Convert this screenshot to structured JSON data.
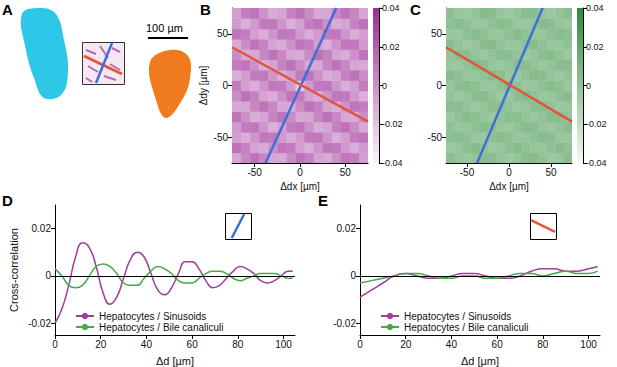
{
  "panel_a": {
    "panel": "A",
    "scale_bar": "100 µm"
  },
  "chart_data": [
    {
      "type": "heatmap",
      "panel": "B",
      "x_label": "Δdx [µm]",
      "y_label": "Δdy [µm]",
      "xlim": [
        -75,
        75
      ],
      "ylim": [
        -75,
        75
      ],
      "xticks": [
        -50,
        0,
        50
      ],
      "yticks": [
        -50,
        0,
        50
      ],
      "grid": false,
      "x": [
        -70,
        -60,
        -50,
        -40,
        -30,
        -20,
        -10,
        0,
        10,
        20,
        30,
        40,
        50,
        60,
        70
      ],
      "y": [
        -70,
        -60,
        -50,
        -40,
        -30,
        -20,
        -10,
        0,
        10,
        20,
        30,
        40,
        50,
        60,
        70
      ],
      "cells": [
        [
          -0.009,
          0.004,
          0.012,
          0.004,
          -0.009,
          -0.01,
          0.002,
          0.012,
          0.006,
          -0.008,
          -0.011,
          0,
          0.011,
          0.008,
          -0.006
        ],
        [
          0.012,
          0.006,
          -0.008,
          -0.011,
          0,
          0.011,
          0.008,
          -0.006,
          -0.012,
          -0.002,
          0.01,
          0.009,
          -0.004,
          -0.012,
          -0.004
        ],
        [
          -0.006,
          -0.012,
          -0.002,
          0.01,
          0.009,
          -0.004,
          -0.012,
          -0.004,
          0.009,
          0.01,
          -0.002,
          -0.012,
          -0.006,
          0.008,
          0.011
        ],
        [
          -0.004,
          0.009,
          0.01,
          -0.002,
          -0.012,
          -0.006,
          0.008,
          0.011,
          0,
          -0.011,
          -0.008,
          0.006,
          0.012,
          0.002,
          -0.01
        ],
        [
          0.011,
          0,
          -0.011,
          -0.008,
          0.006,
          0.012,
          0.002,
          -0.01,
          -0.009,
          0.004,
          0.012,
          0.004,
          -0.009,
          -0.01,
          0.002
        ],
        [
          -0.01,
          -0.009,
          0.004,
          0.012,
          0.004,
          -0.009,
          -0.01,
          0.002,
          0.012,
          0.006,
          -0.008,
          -0.011,
          0,
          0.011,
          0.008
        ],
        [
          0.002,
          0.012,
          0.006,
          -0.008,
          -0.011,
          0,
          0.011,
          0.008,
          -0.006,
          -0.012,
          -0.002,
          0.01,
          0.009,
          -0.004,
          -0.012
        ],
        [
          0.008,
          -0.006,
          -0.012,
          -0.002,
          0.01,
          0.009,
          -0.004,
          -0.02,
          -0.004,
          0.009,
          0.01,
          -0.002,
          -0.012,
          -0.006,
          0.008
        ],
        [
          -0.012,
          -0.004,
          0.009,
          0.01,
          -0.002,
          -0.012,
          -0.006,
          0.008,
          0.011,
          0,
          -0.011,
          -0.008,
          0.006,
          0.012,
          0.002
        ],
        [
          0.008,
          0.011,
          0,
          -0.011,
          -0.008,
          0.006,
          0.012,
          0.002,
          -0.01,
          -0.009,
          0.004,
          0.012,
          0.004,
          -0.009,
          -0.01
        ],
        [
          0.002,
          -0.01,
          -0.009,
          0.004,
          0.012,
          0.004,
          -0.009,
          -0.01,
          0.002,
          0.012,
          0.006,
          -0.008,
          -0.011,
          0,
          0.011
        ],
        [
          -0.01,
          0.002,
          0.012,
          0.006,
          -0.008,
          -0.011,
          0,
          0.011,
          0.008,
          -0.006,
          -0.012,
          -0.002,
          0.01,
          0.009,
          -0.004
        ],
        [
          0.011,
          0.008,
          -0.006,
          -0.012,
          -0.002,
          0.01,
          0.009,
          -0.004,
          -0.012,
          -0.004,
          0.009,
          0.01,
          -0.002,
          -0.012,
          -0.006
        ],
        [
          -0.004,
          -0.012,
          -0.004,
          0.009,
          0.01,
          -0.002,
          -0.012,
          -0.006,
          0.008,
          0.011,
          0,
          -0.011,
          -0.008,
          0.006,
          0.012
        ],
        [
          -0.006,
          0.008,
          0.011,
          0,
          -0.011,
          -0.008,
          0.006,
          0.012,
          0.002,
          -0.01,
          -0.009,
          0.004,
          0.012,
          0.004,
          -0.009
        ]
      ],
      "colorbar": {
        "range": [
          -0.04,
          0.04
        ],
        "ticks": [
          -0.04,
          -0.02,
          0,
          0.02,
          0.04
        ],
        "colors": [
          "#fbf4fb",
          "#9d2d96"
        ]
      },
      "lines": [
        {
          "color": "#3d6fd8",
          "x": [
            -38,
            40
          ],
          "y": [
            -75,
            75
          ]
        },
        {
          "color": "#e2553b",
          "x": [
            -75,
            75
          ],
          "y": [
            37,
            -35
          ]
        }
      ]
    },
    {
      "type": "heatmap",
      "panel": "C",
      "x_label": "Δdx [µm]",
      "xlim": [
        -75,
        75
      ],
      "ylim": [
        -75,
        75
      ],
      "xticks": [
        -50,
        0,
        50
      ],
      "yticks": [
        -50,
        0,
        50
      ],
      "grid": false,
      "x": [
        -70,
        -60,
        -50,
        -40,
        -30,
        -20,
        -10,
        0,
        10,
        20,
        30,
        40,
        50,
        60,
        70
      ],
      "y": [
        -70,
        -60,
        -50,
        -40,
        -30,
        -20,
        -10,
        0,
        10,
        20,
        30,
        40,
        50,
        60,
        70
      ],
      "cells": [
        [
          0.003,
          -0.001,
          -0.004,
          -0.001,
          0.003,
          0.003,
          -0.001,
          -0.004,
          -0.002,
          0.003,
          0.004,
          0,
          -0.004,
          -0.003,
          0.002
        ],
        [
          -0.004,
          -0.002,
          0.003,
          0.004,
          0,
          -0.004,
          -0.003,
          0.002,
          0.004,
          0.001,
          -0.003,
          -0.003,
          0.001,
          0.004,
          0.001
        ],
        [
          0.002,
          0.004,
          0.001,
          -0.003,
          -0.003,
          0.001,
          0.004,
          0.001,
          -0.003,
          -0.003,
          0.001,
          0.004,
          0.002,
          -0.003,
          -0.004
        ],
        [
          0.001,
          -0.003,
          -0.003,
          0.001,
          0.004,
          0.002,
          -0.003,
          -0.004,
          0,
          0.004,
          0.003,
          -0.002,
          -0.004,
          -0.001,
          0.003
        ],
        [
          -0.004,
          0,
          0.004,
          0.003,
          -0.002,
          -0.004,
          -0.001,
          0.003,
          0.003,
          -0.001,
          -0.004,
          -0.001,
          0.003,
          0.003,
          -0.001
        ],
        [
          0.003,
          0.003,
          -0.001,
          -0.004,
          -0.001,
          0.003,
          0.003,
          -0.001,
          -0.004,
          -0.002,
          0.003,
          0.004,
          0,
          -0.004,
          -0.003
        ],
        [
          -0.001,
          -0.004,
          -0.002,
          0.003,
          0.004,
          0,
          -0.004,
          -0.003,
          0.002,
          0.004,
          0.001,
          -0.003,
          -0.003,
          0.001,
          0.004
        ],
        [
          -0.003,
          0.002,
          0.004,
          0.001,
          -0.003,
          -0.003,
          0.001,
          0.004,
          0.001,
          -0.003,
          -0.003,
          0.001,
          0.004,
          0.002,
          -0.003
        ],
        [
          0.004,
          0.001,
          -0.003,
          -0.003,
          0.001,
          0.004,
          0.002,
          -0.003,
          -0.004,
          0,
          0.004,
          0.003,
          -0.002,
          -0.004,
          -0.001
        ],
        [
          -0.003,
          -0.004,
          0,
          0.004,
          0.003,
          -0.002,
          -0.004,
          -0.001,
          0.003,
          0.003,
          -0.001,
          -0.004,
          -0.001,
          0.003,
          0.003
        ],
        [
          -0.001,
          0.003,
          0.003,
          -0.001,
          -0.004,
          -0.001,
          0.003,
          0.003,
          -0.001,
          -0.004,
          -0.002,
          0.003,
          0.004,
          0,
          -0.004
        ],
        [
          0.003,
          -0.001,
          -0.004,
          -0.002,
          0.003,
          0.004,
          0,
          -0.004,
          -0.003,
          0.002,
          0.004,
          0.001,
          -0.003,
          -0.003,
          0.001
        ],
        [
          -0.004,
          -0.003,
          0.002,
          0.004,
          0.001,
          -0.003,
          -0.003,
          0.001,
          0.004,
          0.001,
          -0.003,
          -0.003,
          0.001,
          0.004,
          0.002
        ],
        [
          0.001,
          0.004,
          0.001,
          -0.003,
          -0.003,
          0.001,
          0.004,
          0.002,
          -0.003,
          -0.004,
          0,
          0.004,
          0.003,
          -0.002,
          -0.004
        ],
        [
          0.002,
          -0.003,
          -0.004,
          0,
          0.004,
          0.003,
          -0.002,
          -0.004,
          -0.001,
          0.003,
          0.003,
          -0.001,
          -0.004,
          -0.001,
          0.003
        ]
      ],
      "colorbar": {
        "range": [
          -0.04,
          0.04
        ],
        "ticks": [
          -0.04,
          -0.02,
          0,
          0.02,
          0.04
        ],
        "colors": [
          "#f4faf3",
          "#2e8b3a"
        ]
      },
      "lines": [
        {
          "color": "#3d6fd8",
          "x": [
            -38,
            40
          ],
          "y": [
            -75,
            75
          ]
        },
        {
          "color": "#e2553b",
          "x": [
            -75,
            75
          ],
          "y": [
            37,
            -35
          ]
        }
      ]
    },
    {
      "type": "line",
      "panel": "D",
      "x_label": "Δd [µm]",
      "y_label": "Cross-correlation",
      "xlim": [
        0,
        105
      ],
      "ylim": [
        -0.025,
        0.03
      ],
      "xticks": [
        0,
        20,
        40,
        60,
        80,
        100
      ],
      "yticks": [
        -0.02,
        0,
        0.02
      ],
      "grid": false,
      "legend": "lower left",
      "marker": "none",
      "line_style": "solid",
      "hline": 0,
      "direction_color": "#3d6fd8",
      "x": [
        0,
        3,
        6,
        9,
        12,
        15,
        18,
        21,
        24,
        27,
        30,
        33,
        36,
        39,
        42,
        45,
        48,
        51,
        54,
        57,
        60,
        63,
        66,
        69,
        72,
        75,
        78,
        81,
        84,
        87,
        90,
        93,
        96,
        99,
        102,
        104
      ],
      "series": [
        {
          "name": "Hepatocytes / Sinusoids",
          "color": "#a23b9c",
          "values": [
            -0.02,
            -0.014,
            -0.004,
            0.008,
            0.014,
            0.012,
            0.004,
            -0.007,
            -0.012,
            -0.009,
            -0.001,
            0.007,
            0.01,
            0.008,
            0.001,
            -0.006,
            -0.008,
            -0.005,
            0.001,
            0.006,
            0.006,
            0.003,
            -0.002,
            -0.005,
            -0.004,
            -0.001,
            0.002,
            0.004,
            0.003,
            0.001,
            -0.002,
            -0.003,
            -0.002,
            0,
            0.002,
            0.002
          ]
        },
        {
          "name": "Hepatocytes / Bile canaliculi",
          "color": "#45a84b",
          "values": [
            0.003,
            0,
            -0.004,
            -0.005,
            -0.004,
            0,
            0.004,
            0.005,
            0.004,
            0.001,
            -0.003,
            -0.004,
            -0.004,
            -0.001,
            0.002,
            0.004,
            0.003,
            0.001,
            -0.002,
            -0.003,
            -0.003,
            -0.001,
            0.001,
            0.002,
            0.002,
            0.001,
            -0.001,
            -0.002,
            -0.001,
            0,
            0.001,
            0.001,
            0.001,
            0,
            -0.001,
            -0.001
          ]
        }
      ]
    },
    {
      "type": "line",
      "panel": "E",
      "x_label": "Δd [µm]",
      "xlim": [
        0,
        105
      ],
      "ylim": [
        -0.025,
        0.03
      ],
      "xticks": [
        0,
        20,
        40,
        60,
        80,
        100
      ],
      "yticks": [
        -0.02,
        0,
        0.02
      ],
      "grid": false,
      "legend": "lower left",
      "marker": "none",
      "line_style": "solid",
      "hline": 0,
      "direction_color": "#e2553b",
      "x": [
        0,
        5,
        10,
        15,
        20,
        25,
        30,
        35,
        40,
        45,
        50,
        55,
        60,
        65,
        70,
        75,
        80,
        85,
        90,
        95,
        100,
        104
      ],
      "series": [
        {
          "name": "Hepatocytes / Sinusoids",
          "color": "#a23b9c",
          "values": [
            -0.009,
            -0.006,
            -0.003,
            0,
            0.001,
            0,
            -0.001,
            -0.001,
            0,
            0.001,
            0.001,
            0,
            -0.001,
            -0.001,
            0,
            0.002,
            0.003,
            0.003,
            0.002,
            0.002,
            0.003,
            0.004
          ]
        },
        {
          "name": "Hepatocytes / Bile canaliculi",
          "color": "#45a84b",
          "values": [
            -0.003,
            -0.002,
            -0.001,
            0,
            0.001,
            0.001,
            0,
            -0.001,
            -0.001,
            0,
            0,
            -0.001,
            -0.001,
            0,
            0.001,
            0.001,
            0,
            0.001,
            0.002,
            0.001,
            0.001,
            0.002
          ]
        }
      ]
    }
  ]
}
